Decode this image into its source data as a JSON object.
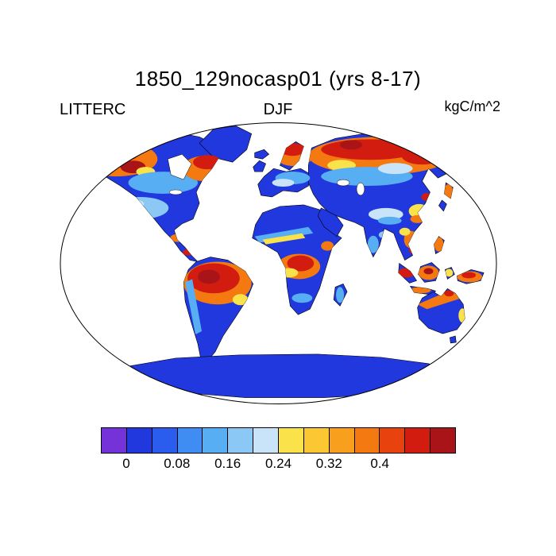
{
  "title": "1850_129nocasp01 (yrs 8-17)",
  "labels": {
    "left": "LITTERC",
    "center": "DJF",
    "right": "kgC/m^2"
  },
  "chart_data": {
    "type": "heatmap",
    "title": "1850_129nocasp01 (yrs 8-17)",
    "variable": "LITTERC",
    "season": "DJF",
    "units": "kgC/m^2",
    "projection": "robinson-like global map, white ocean, black coastlines",
    "colorbar": {
      "orientation": "horizontal",
      "n_cells": 14,
      "colors": [
        "#7632d9",
        "#2038dd",
        "#2a5cee",
        "#3f8df2",
        "#58aef2",
        "#8cc8f5",
        "#c9e4f8",
        "#f9e24a",
        "#fbc833",
        "#f8a01e",
        "#f57911",
        "#e8430e",
        "#d31c10",
        "#a81418"
      ],
      "tick_labels": [
        "0",
        "0.08",
        "0.16",
        "0.24",
        "0.32",
        "0.4"
      ],
      "tick_values": [
        0,
        0.08,
        0.16,
        0.24,
        0.32,
        0.4
      ],
      "tick_boundary_indices": [
        1,
        3,
        5,
        7,
        9,
        11
      ],
      "value_per_cell": 0.04
    },
    "map_colors": {
      "ocean": "#ffffff",
      "land_low_value": "#2038dd",
      "outline": "#000000"
    },
    "high_value_regions": [
      "Alaska and northwest Canada",
      "eastern Canada / Quebec",
      "Scandinavia",
      "Siberia",
      "Russian Far East",
      "Korea/Japan",
      "Amazon basin",
      "Congo basin",
      "Southeast Asia",
      "Indonesia and New Guinea",
      "northern Australia",
      "New Zealand",
      "Central America"
    ],
    "low_value_regions": [
      "Greenland",
      "Sahara and Arabia",
      "central Asia",
      "India interior",
      "southern South America",
      "Australia interior",
      "Antarctica"
    ]
  }
}
